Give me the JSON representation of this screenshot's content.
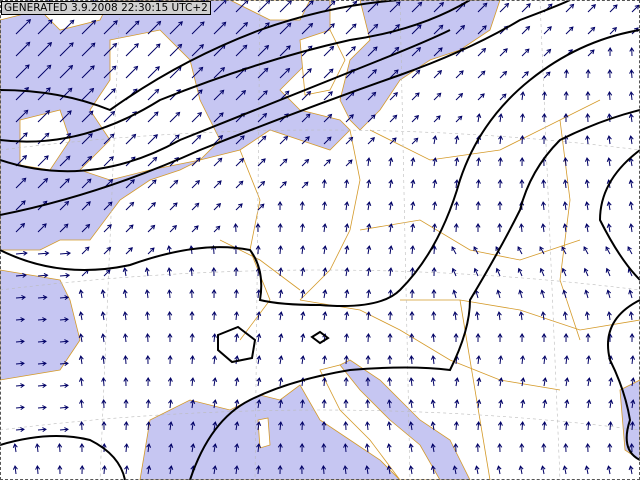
{
  "header": {
    "generated_label": "GENERATED 3.9.2008 22:30:15 UTC+2"
  },
  "colors": {
    "sea": "#c6c6f2",
    "land": "#ffffff",
    "border": "#d49a2a",
    "isobar": "#000000",
    "wind_arrow": "#000066",
    "grid": "#bbbbbb"
  },
  "layers": [
    "sea",
    "land",
    "country-borders",
    "lat-lon-grid",
    "isobars",
    "wind-arrows"
  ]
}
